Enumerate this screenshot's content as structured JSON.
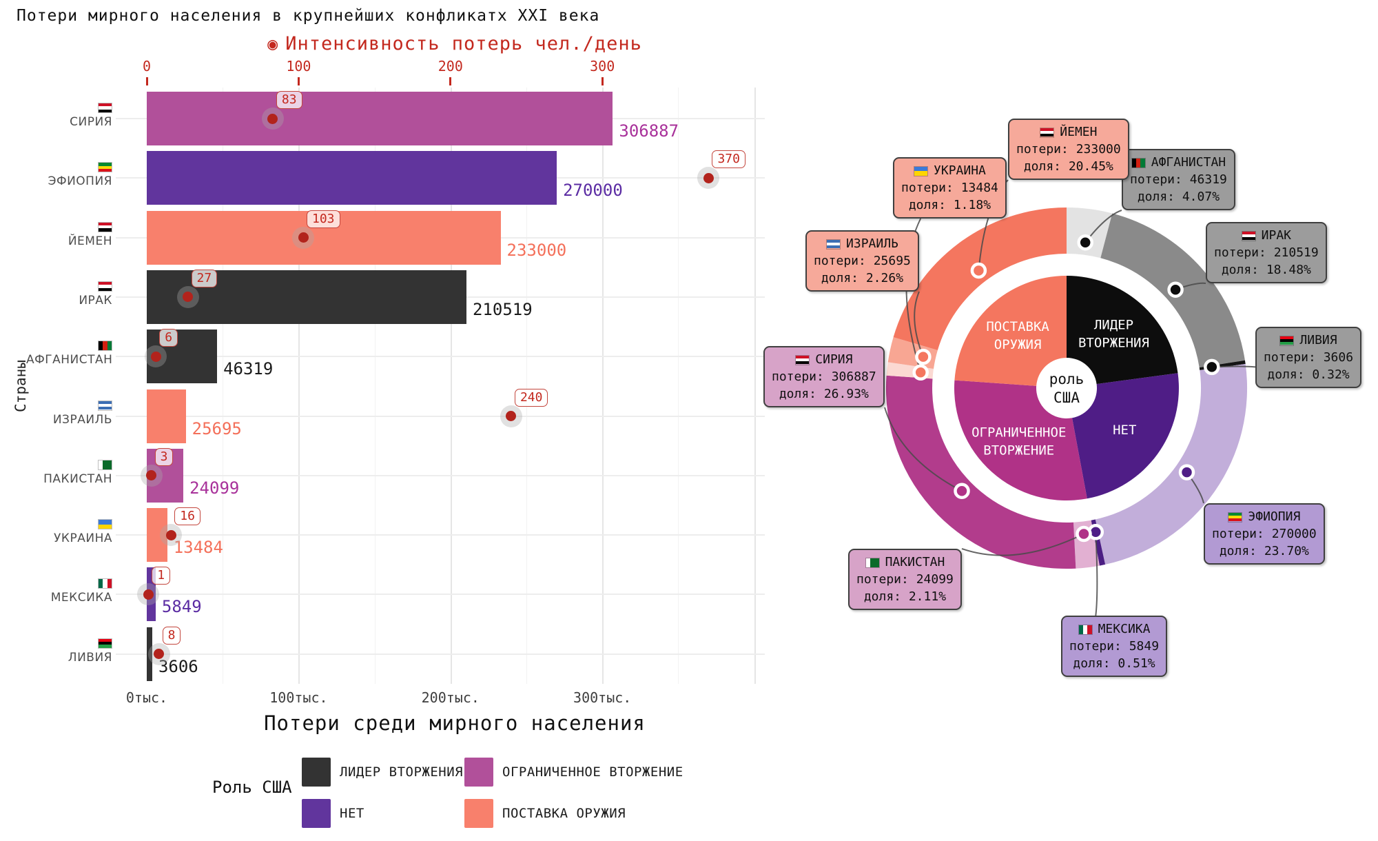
{
  "page_title": "Потери мирного населения в крупнейших конфликатх XXI века",
  "left_chart": {
    "y_axis_title": "Страны",
    "x_axis_title": "Потери среди мирного населения",
    "intensity_legend": "Интенсивность потерь чел./день",
    "intensity_icon": "◉",
    "intensity_ticks": [
      0,
      100,
      200,
      300
    ],
    "loss_tick_labels": [
      "0тыс.",
      "100тыс.",
      "200тыс.",
      "300тыс."
    ],
    "legend_title": "Роль США"
  },
  "labels": {
    "losses_prefix": "потери",
    "share_prefix": "доля"
  },
  "roles": [
    {
      "id": "leader",
      "label": "ЛИДЕР ВТОРЖЕНИЯ",
      "color": "#333333",
      "inner_color": "#0d0d0d",
      "text_color": "#1a1a1a",
      "box_bg": "#9c9c9c"
    },
    {
      "id": "limited",
      "label": "ОГРАНИЧЕННОЕ ВТОРЖЕНИЕ",
      "color": "#b1509a",
      "inner_color": "#b03287",
      "text_color": "#a8319a",
      "box_bg": "#d7a3c8"
    },
    {
      "id": "no",
      "label": "НЕТ",
      "color": "#61359d",
      "inner_color": "#4f1d86",
      "text_color": "#5b2ca3",
      "box_bg": "#b29ad3"
    },
    {
      "id": "supply",
      "label": "ПОСТАВКА ОРУЖИЯ",
      "color": "#f8806c",
      "inner_color": "#f4765f",
      "text_color": "#f4705a",
      "box_bg": "#f6a99a"
    }
  ],
  "countries": [
    {
      "id": "syria",
      "name": "СИРИЯ",
      "losses": 306887,
      "intensity": 83,
      "share": 26.93,
      "share_label": "26.93%",
      "role": "limited",
      "ring_color": "#b23c8c",
      "flag": {
        "dir": "h",
        "stripes": [
          "#ce1126",
          "#ffffff",
          "#000000"
        ]
      }
    },
    {
      "id": "ethiopia",
      "name": "ЭФИОПИЯ",
      "losses": 270000,
      "intensity": 370,
      "share": 23.7,
      "share_label": "23.70%",
      "role": "no",
      "ring_color": "#c2aeda",
      "flag": {
        "dir": "h",
        "stripes": [
          "#078930",
          "#fcdd09",
          "#da121a"
        ]
      }
    },
    {
      "id": "yemen",
      "name": "ЙЕМЕН",
      "losses": 233000,
      "intensity": 103,
      "share": 20.45,
      "share_label": "20.45%",
      "role": "supply",
      "ring_color": "#f4765f",
      "flag": {
        "dir": "h",
        "stripes": [
          "#ce1126",
          "#ffffff",
          "#000000"
        ]
      }
    },
    {
      "id": "iraq",
      "name": "ИРАК",
      "losses": 210519,
      "intensity": 27,
      "share": 18.48,
      "share_label": "18.48%",
      "role": "leader",
      "ring_color": "#8a8a8a",
      "flag": {
        "dir": "h",
        "stripes": [
          "#ce1126",
          "#ffffff",
          "#000000"
        ]
      }
    },
    {
      "id": "afghanistan",
      "name": "АФГАНИСТАН",
      "losses": 46319,
      "intensity": 6,
      "share": 4.07,
      "share_label": "4.07%",
      "role": "leader",
      "ring_color": "#e3e3e3",
      "flag": {
        "dir": "v",
        "stripes": [
          "#000000",
          "#d32011",
          "#007a36"
        ]
      }
    },
    {
      "id": "israel",
      "name": "ИЗРАИЛЬ",
      "losses": 25695,
      "intensity": 240,
      "share": 2.26,
      "share_label": "2.26%",
      "role": "supply",
      "ring_color": "#f8a693",
      "flag": {
        "dir": "h",
        "stripes": [
          "#3c6eb4",
          "#ffffff",
          "#3c6eb4"
        ]
      }
    },
    {
      "id": "pakistan",
      "name": "ПАКИСТАН",
      "losses": 24099,
      "intensity": 3,
      "share": 2.11,
      "share_label": "2.11%",
      "role": "limited",
      "ring_color": "#e2b0d2",
      "flag": {
        "dir": "v",
        "stripes": [
          "#ffffff",
          "#0a6b2a",
          "#0a6b2a"
        ]
      }
    },
    {
      "id": "ukraine",
      "name": "УКРАИНА",
      "losses": 13484,
      "intensity": 16,
      "share": 1.18,
      "share_label": "1.18%",
      "role": "supply",
      "ring_color": "#fbd9d2",
      "flag": {
        "dir": "h",
        "stripes": [
          "#3b7ad9",
          "#ffd500"
        ]
      }
    },
    {
      "id": "mexico",
      "name": "МЕКСИКА",
      "losses": 5849,
      "intensity": 1,
      "share": 0.51,
      "share_label": "0.51%",
      "role": "no",
      "ring_color": "#4b1e83",
      "flag": {
        "dir": "v",
        "stripes": [
          "#006847",
          "#ffffff",
          "#ce1126"
        ]
      }
    },
    {
      "id": "libya",
      "name": "ЛИВИЯ",
      "losses": 3606,
      "intensity": 8,
      "share": 0.32,
      "share_label": "0.32%",
      "role": "leader",
      "ring_color": "#151515",
      "flag": {
        "dir": "h",
        "stripes": [
          "#e70013",
          "#000000",
          "#239e46"
        ]
      }
    }
  ],
  "donut": {
    "order": [
      "afghanistan",
      "iraq",
      "libya",
      "ethiopia",
      "mexico",
      "pakistan",
      "syria",
      "ukraine",
      "israel",
      "yemen"
    ],
    "center_lines": [
      "роль",
      "США"
    ]
  },
  "chart_data": [
    {
      "type": "bar",
      "orientation": "horizontal",
      "title": "Потери мирного населения в крупнейших конфликатх XXI века",
      "xlabel": "Потери среди мирного населения",
      "ylabel": "Страны",
      "categories": [
        "СИРИЯ",
        "ЭФИОПИЯ",
        "ЙЕМЕН",
        "ИРАК",
        "АФГАНИСТАН",
        "ИЗРАИЛЬ",
        "ПАКИСТАН",
        "УКРАИНА",
        "МЕКСИКА",
        "ЛИВИЯ"
      ],
      "series": [
        {
          "name": "Потери среди мирного населения",
          "values": [
            306887,
            270000,
            233000,
            210519,
            46319,
            25695,
            24099,
            13484,
            5849,
            3606
          ]
        },
        {
          "name": "Интенсивность потерь чел./день",
          "values": [
            83,
            370,
            103,
            27,
            6,
            240,
            3,
            16,
            1,
            8
          ]
        }
      ],
      "x_ticks": [
        "0тыс.",
        "100тыс.",
        "200тыс.",
        "300тыс."
      ],
      "secondary_x_ticks": [
        0,
        100,
        200,
        300
      ],
      "legend": {
        "title": "Роль США",
        "entries": [
          "ЛИДЕР ВТОРЖЕНИЯ",
          "ОГРАНИЧЕННОЕ ВТОРЖЕНИЕ",
          "НЕТ",
          "ПОСТАВКА ОРУЖИЯ"
        ]
      },
      "grid": true
    },
    {
      "type": "pie",
      "subtype": "double-donut",
      "center_label": "роль США",
      "outer_labels": [
        "АФГАНИСТАН",
        "ИРАК",
        "ЛИВИЯ",
        "ЭФИОПИЯ",
        "МЕКСИКА",
        "ПАКИСТАН",
        "СИРИЯ",
        "УКРАИНА",
        "ИЗРАИЛЬ",
        "ЙЕМЕН"
      ],
      "outer_values_pct": [
        4.07,
        18.48,
        0.32,
        23.7,
        0.51,
        2.11,
        26.93,
        1.18,
        2.26,
        20.45
      ],
      "outer_losses": [
        46319,
        210519,
        3606,
        270000,
        5849,
        24099,
        306887,
        13484,
        25695,
        233000
      ],
      "inner_labels": [
        "ЛИДЕР ВТОРЖЕНИЯ",
        "НЕТ",
        "ОГРАНИЧЕННОЕ ВТОРЖЕНИЕ",
        "ПОСТАВКА ОРУЖИЯ"
      ],
      "inner_values_pct": [
        22.87,
        24.21,
        29.04,
        23.89
      ]
    }
  ],
  "colors": {
    "accent_red": "#c3281e",
    "dot_red": "#b2231c",
    "grid_major": "#e5e5e5",
    "grid_minor": "#f2f2f2",
    "leader_line": "#4a4a4a"
  }
}
